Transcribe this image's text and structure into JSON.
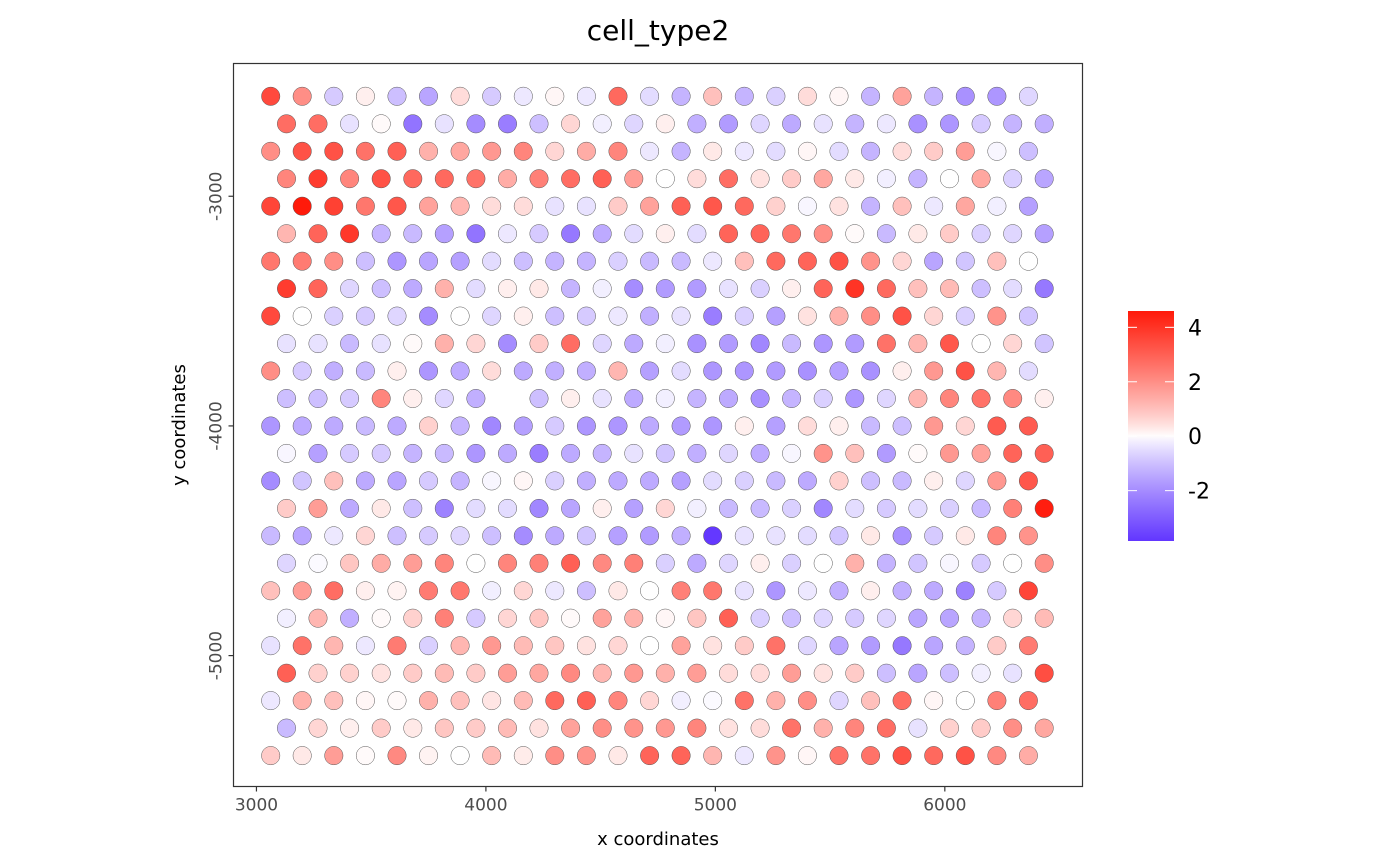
{
  "chart_data": {
    "type": "scatter",
    "title": "cell_type2",
    "xlabel": "x coordinates",
    "ylabel": "y coordinates",
    "xlim": [
      2900,
      6600
    ],
    "ylim": [
      -5570,
      -2422
    ],
    "xticks": [
      3000,
      4000,
      5000,
      6000
    ],
    "yticks": [
      -3000,
      -4000,
      -5000
    ],
    "xtick_labels": [
      "3000",
      "4000",
      "5000",
      "6000"
    ],
    "ytick_labels": [
      "-3000",
      "-4000",
      "-5000"
    ],
    "grid": false,
    "layout": {
      "x_start": 3062,
      "x_step": 137.6,
      "odd_row_x_offset": 68.8,
      "y_start": -2565,
      "y_step": -119.6,
      "rows": 25,
      "cols": 25
    },
    "missing_spots": [
      [
        11,
        7
      ]
    ],
    "values": [
      [
        3.5,
        2.0,
        -0.8,
        0.2,
        -1.0,
        -1.5,
        0.5,
        -0.8,
        -0.3,
        0.1,
        -0.3,
        2.8,
        -0.5,
        -1.2,
        1.0,
        -1.2,
        -0.7,
        0.5,
        0.1,
        -1.2,
        1.6,
        -1.2,
        -1.9,
        -1.8,
        -0.6
      ],
      [
        2.7,
        2.7,
        -0.4,
        0.05,
        -2.5,
        -0.4,
        -2.0,
        -2.3,
        -1.0,
        0.6,
        -0.2,
        -0.6,
        0.2,
        -1.3,
        -1.7,
        -0.6,
        -1.4,
        -0.4,
        -1.2,
        -0.3,
        -1.9,
        -1.8,
        -0.8,
        -1.2,
        -1.3
      ],
      [
        2.0,
        3.3,
        3.3,
        2.6,
        3.0,
        1.3,
        1.5,
        1.8,
        2.2,
        0.6,
        1.4,
        2.2,
        -0.3,
        -1.2,
        0.3,
        -0.3,
        -0.5,
        0.1,
        -0.5,
        -1.2,
        0.5,
        0.8,
        1.7,
        -0.1,
        -1.0
      ],
      [
        2.2,
        3.8,
        2.2,
        3.3,
        2.8,
        2.8,
        2.6,
        1.4,
        2.3,
        2.7,
        3.0,
        1.7,
        0.0,
        0.5,
        2.7,
        0.4,
        0.8,
        1.5,
        0.3,
        -0.2,
        -1.2,
        0.0,
        1.5,
        -0.7,
        -1.5
      ],
      [
        3.6,
        4.6,
        3.7,
        2.5,
        3.2,
        1.6,
        1.2,
        0.5,
        0.5,
        -0.4,
        -0.4,
        0.8,
        1.6,
        3.0,
        3.2,
        2.8,
        0.7,
        -0.1,
        0.4,
        -1.2,
        1.0,
        -0.3,
        1.5,
        -0.2,
        -1.6
      ],
      [
        1.2,
        2.9,
        3.9,
        -1.2,
        -1.1,
        -1.6,
        -2.5,
        -0.3,
        -0.8,
        -2.4,
        -1.4,
        -0.5,
        0.2,
        -0.5,
        2.9,
        2.9,
        2.5,
        2.0,
        0.05,
        -1.1,
        0.3,
        0.8,
        -0.7,
        -0.6,
        -1.6
      ],
      [
        2.5,
        2.4,
        2.0,
        -1.0,
        -1.8,
        -1.5,
        -1.6,
        -0.5,
        -1.0,
        -1.2,
        -1.2,
        -0.7,
        -1.1,
        -1.1,
        -0.3,
        1.0,
        2.8,
        2.9,
        3.3,
        1.9,
        0.6,
        -1.5,
        -0.9,
        1.0,
        0.0
      ],
      [
        3.8,
        2.9,
        -0.6,
        -1.0,
        -1.4,
        1.3,
        -0.5,
        0.2,
        0.3,
        -1.2,
        -0.2,
        -2.0,
        -1.7,
        -1.7,
        -0.4,
        -0.7,
        0.2,
        2.9,
        4.0,
        2.8,
        1.0,
        1.1,
        -1.0,
        -0.5,
        -2.4
      ],
      [
        3.5,
        0.0,
        -0.7,
        -0.8,
        -0.6,
        -2.0,
        0.0,
        -0.6,
        0.2,
        -1.0,
        -0.8,
        -0.3,
        -1.3,
        -0.4,
        -2.3,
        -0.7,
        -1.6,
        0.4,
        1.3,
        2.0,
        3.3,
        0.6,
        -0.7,
        1.9,
        -0.9
      ],
      [
        -0.4,
        -0.4,
        -1.1,
        -0.4,
        0.05,
        1.3,
        0.6,
        -2.0,
        0.8,
        2.7,
        -0.6,
        -1.4,
        -0.2,
        -1.9,
        -1.7,
        -2.1,
        -1.1,
        -1.8,
        -1.7,
        2.6,
        1.2,
        3.2,
        0.0,
        0.6,
        -0.9
      ],
      [
        2.0,
        -0.8,
        -1.3,
        -1.1,
        0.2,
        -1.8,
        -1.4,
        0.5,
        -1.4,
        -1.3,
        -1.3,
        1.2,
        -1.6,
        -0.5,
        -1.8,
        -1.8,
        -1.7,
        -1.9,
        -1.6,
        -1.9,
        0.2,
        1.8,
        3.3,
        1.2,
        -0.5
      ],
      [
        -1.0,
        -1.0,
        -0.8,
        2.2,
        0.2,
        -0.6,
        -1.3,
        null,
        -1.0,
        0.2,
        -0.4,
        -1.4,
        -0.2,
        -1.2,
        -1.4,
        -1.9,
        -1.2,
        -0.7,
        -1.8,
        -0.6,
        1.2,
        2.2,
        2.6,
        2.1,
        0.2
      ],
      [
        -1.8,
        -1.4,
        -1.4,
        -1.1,
        -1.4,
        0.7,
        -1.2,
        -2.1,
        -1.6,
        -0.8,
        -1.8,
        -1.8,
        -1.4,
        -1.7,
        -1.8,
        0.2,
        -1.6,
        0.5,
        0.2,
        -1.1,
        -1.0,
        1.8,
        0.6,
        3.1,
        3.1
      ],
      [
        -0.1,
        -1.6,
        -0.8,
        -0.8,
        -1.2,
        -1.1,
        -1.8,
        -1.4,
        -2.3,
        -1.4,
        -1.2,
        -0.4,
        -0.9,
        -1.3,
        -0.6,
        -1.4,
        -0.1,
        1.9,
        1.0,
        -1.7,
        0.05,
        1.8,
        1.6,
        2.9,
        3.0
      ],
      [
        -2.0,
        -0.9,
        1.0,
        -1.4,
        -1.5,
        -0.8,
        -1.2,
        -0.1,
        0.1,
        -0.7,
        -1.3,
        -1.4,
        -1.4,
        -1.6,
        -0.5,
        -0.7,
        -1.1,
        -1.4,
        0.7,
        -1.0,
        -1.1,
        0.2,
        -0.6,
        1.8,
        3.2
      ],
      [
        0.8,
        1.7,
        -1.4,
        0.3,
        -1.0,
        -2.2,
        -0.5,
        -0.5,
        -2.1,
        -1.5,
        0.2,
        -1.6,
        0.6,
        -0.2,
        -1.1,
        -1.1,
        -0.7,
        -2.1,
        -0.5,
        -0.8,
        -0.5,
        -0.7,
        -1.1,
        2.3,
        4.5
      ],
      [
        -1.1,
        -1.5,
        -0.3,
        0.6,
        -1.0,
        -0.8,
        -0.6,
        -1.0,
        -2.0,
        -1.4,
        -0.9,
        -1.6,
        -1.7,
        -1.3,
        -3.8,
        -0.4,
        -0.4,
        -0.5,
        -0.9,
        0.3,
        -1.9,
        -0.8,
        0.3,
        2.2,
        1.9
      ],
      [
        -0.6,
        -0.05,
        0.9,
        1.4,
        1.7,
        2.2,
        0.0,
        2.2,
        2.3,
        3.0,
        2.1,
        2.3,
        -0.7,
        -1.4,
        -0.6,
        0.2,
        -0.7,
        0.0,
        1.3,
        -1.2,
        -0.9,
        -0.1,
        -0.8,
        0.0,
        2.0
      ],
      [
        1.0,
        1.7,
        2.7,
        0.2,
        0.15,
        2.4,
        2.5,
        -0.2,
        0.6,
        -0.3,
        -1.0,
        0.3,
        0.0,
        2.3,
        2.5,
        -0.4,
        -1.8,
        -0.3,
        -1.3,
        0.2,
        -1.3,
        -1.4,
        -2.2,
        -0.8,
        3.6
      ],
      [
        -0.2,
        1.2,
        -1.3,
        0.05,
        0.7,
        2.3,
        -0.8,
        0.6,
        0.9,
        0.05,
        1.6,
        1.3,
        0.1,
        0.9,
        3.0,
        -0.7,
        -1.0,
        -0.6,
        -0.8,
        -0.6,
        -1.5,
        -1.5,
        -1.2,
        0.6,
        1.1
      ],
      [
        -0.4,
        2.6,
        1.2,
        -0.3,
        2.4,
        -0.7,
        1.2,
        1.8,
        1.1,
        0.9,
        0.4,
        0.6,
        0.0,
        1.6,
        0.4,
        0.8,
        2.6,
        -0.6,
        -1.5,
        -1.7,
        -2.4,
        -1.5,
        -1.2,
        0.8,
        2.4
      ],
      [
        3.0,
        0.7,
        0.7,
        0.4,
        0.8,
        1.1,
        0.8,
        1.7,
        1.5,
        2.1,
        1.2,
        1.8,
        1.3,
        1.7,
        0.5,
        0.5,
        1.7,
        0.4,
        0.8,
        -1.0,
        -1.5,
        -1.0,
        -0.2,
        -0.4,
        3.4
      ],
      [
        -0.3,
        1.3,
        1.0,
        0.1,
        0.05,
        1.3,
        1.0,
        0.35,
        1.1,
        2.8,
        3.0,
        2.2,
        0.6,
        -0.2,
        -0.05,
        2.6,
        1.3,
        2.0,
        -0.6,
        1.0,
        2.7,
        0.1,
        0.0,
        2.3,
        2.7
      ],
      [
        -1.1,
        0.6,
        0.2,
        0.8,
        0.3,
        0.9,
        0.8,
        1.1,
        0.4,
        1.6,
        2.0,
        1.9,
        1.8,
        2.2,
        0.4,
        0.5,
        2.6,
        1.3,
        2.2,
        2.7,
        -0.4,
        0.7,
        0.8,
        2.0,
        1.5
      ],
      [
        0.8,
        0.3,
        1.7,
        0.05,
        2.1,
        0.15,
        0.0,
        1.1,
        0.25,
        2.0,
        1.9,
        0.3,
        2.9,
        2.9,
        1.2,
        -0.3,
        1.9,
        0.1,
        2.6,
        2.6,
        3.3,
        2.8,
        3.3,
        2.1,
        1.4
      ]
    ],
    "color_scale": {
      "low": "#6236ff",
      "mid": "#ffffff",
      "high": "#ff1a0a",
      "midpoint": 0,
      "range": [
        -3.85,
        4.6
      ]
    },
    "legend": {
      "position": "right",
      "ticks": [
        4,
        2,
        0,
        -2
      ],
      "tick_labels": [
        "4",
        "2",
        "0",
        "-2"
      ]
    },
    "point_stroke": "#555555"
  }
}
